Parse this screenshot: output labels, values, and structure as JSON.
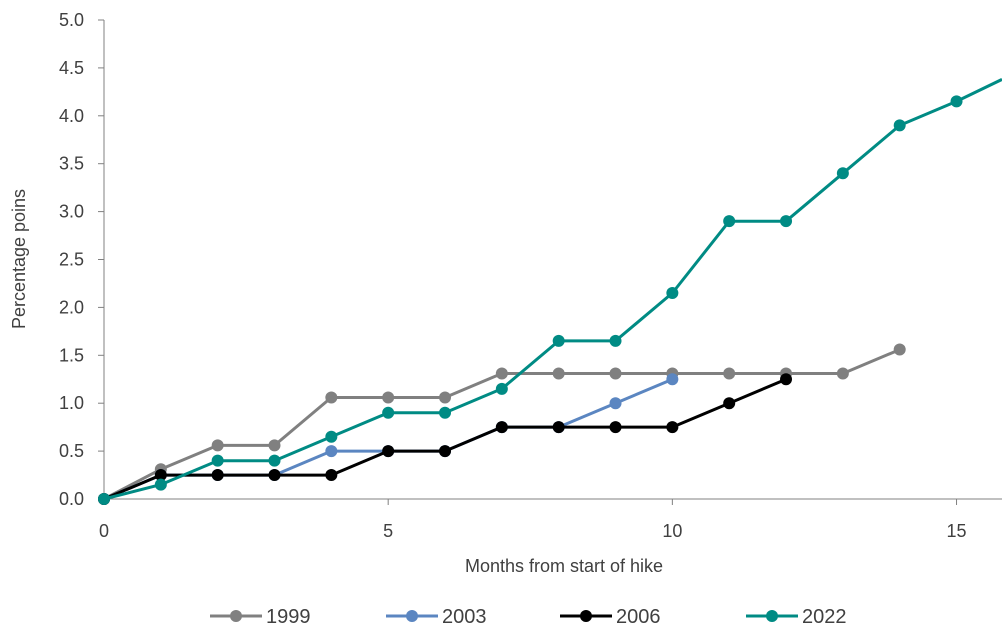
{
  "chart_data": {
    "type": "line",
    "title": "",
    "xlabel": "Months from start of hike",
    "ylabel": "Percentage poins",
    "xlim": [
      0,
      15.8
    ],
    "ylim": [
      0,
      5.0
    ],
    "x_ticks": [
      0,
      5,
      10,
      15
    ],
    "x_tick_labels": [
      "0",
      "5",
      "10",
      "15"
    ],
    "y_ticks": [
      0,
      0.5,
      1.0,
      1.5,
      2.0,
      2.5,
      3.0,
      3.5,
      4.0,
      4.5,
      5.0
    ],
    "y_tick_labels": [
      "0.0",
      "0.5",
      "1.0",
      "1.5",
      "2.0",
      "2.5",
      "3.0",
      "3.5",
      "4.0",
      "4.5",
      "5.0"
    ],
    "grid": false,
    "legend_position": "bottom",
    "series": [
      {
        "name": "1999",
        "color": "#808080",
        "x": [
          0,
          1,
          2,
          3,
          4,
          5,
          6,
          7,
          8,
          9,
          10,
          11,
          12,
          13,
          14
        ],
        "y": [
          0.0,
          0.31,
          0.56,
          0.56,
          1.06,
          1.06,
          1.06,
          1.31,
          1.31,
          1.31,
          1.31,
          1.31,
          1.31,
          1.31,
          1.56
        ]
      },
      {
        "name": "2003",
        "color": "#5b86c1",
        "x": [
          0,
          1,
          2,
          3,
          4,
          5,
          6,
          7,
          8,
          9,
          10
        ],
        "y": [
          0.0,
          0.25,
          0.25,
          0.25,
          0.5,
          0.5,
          0.5,
          0.75,
          0.75,
          1.0,
          1.25
        ]
      },
      {
        "name": "2006",
        "color": "#000000",
        "x": [
          0,
          1,
          2,
          3,
          4,
          5,
          6,
          7,
          8,
          9,
          10,
          11,
          12
        ],
        "y": [
          0.0,
          0.25,
          0.25,
          0.25,
          0.25,
          0.5,
          0.5,
          0.75,
          0.75,
          0.75,
          0.75,
          1.0,
          1.25
        ]
      },
      {
        "name": "2022",
        "color": "#008b84",
        "x": [
          0,
          1,
          2,
          3,
          4,
          5,
          6,
          7,
          8,
          9,
          10,
          11,
          12,
          13,
          14,
          15,
          15.8
        ],
        "y": [
          0.0,
          0.15,
          0.4,
          0.4,
          0.65,
          0.9,
          0.9,
          1.15,
          1.65,
          1.65,
          2.15,
          2.9,
          2.9,
          3.4,
          3.9,
          4.15,
          4.38
        ]
      }
    ]
  }
}
